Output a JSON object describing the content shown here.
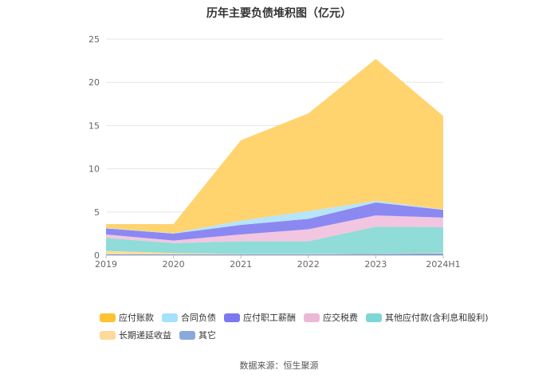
{
  "title": "历年主要负债堆积图（亿元）",
  "source": "数据来源：恒生聚源",
  "chart_data": {
    "type": "area",
    "stacked": true,
    "title": "历年主要负债堆积图（亿元）",
    "categories": [
      "2019",
      "2020",
      "2021",
      "2022",
      "2023",
      "2024H1"
    ],
    "ylim": [
      0,
      25
    ],
    "yticks": [
      0,
      5,
      10,
      15,
      20,
      25
    ],
    "grid": true,
    "legend_position": "bottom",
    "series": [
      {
        "name": "其它",
        "color": "#7f9fd8",
        "values": [
          0.1,
          0.1,
          0.1,
          0.1,
          0.15,
          0.2
        ]
      },
      {
        "name": "长期递延收益",
        "color": "#ffdca0",
        "values": [
          0.4,
          0.15,
          0.05,
          0.05,
          0.05,
          0.05
        ]
      },
      {
        "name": "其他应付款(含利息和股利)",
        "color": "#8fdcd8",
        "values": [
          1.5,
          1.15,
          1.45,
          1.45,
          3.1,
          3.0
        ]
      },
      {
        "name": "应交税费",
        "color": "#f2c6e0",
        "values": [
          0.4,
          0.3,
          0.8,
          1.4,
          1.3,
          1.1
        ]
      },
      {
        "name": "应付职工薪酬",
        "color": "#8c88f2",
        "values": [
          0.7,
          0.8,
          1.1,
          1.2,
          1.5,
          0.9
        ]
      },
      {
        "name": "合同负债",
        "color": "#b6e4f8",
        "values": [
          0.05,
          0.05,
          0.5,
          0.9,
          0.2,
          0.05
        ]
      },
      {
        "name": "应付账款",
        "color": "#ffd36e",
        "values": [
          0.45,
          1.05,
          9.3,
          11.3,
          16.4,
          10.8
        ]
      }
    ]
  },
  "legend": [
    {
      "name": "应付账款",
      "color": "#ffc233"
    },
    {
      "name": "合同负债",
      "color": "#a6e0fc"
    },
    {
      "name": "应付职工薪酬",
      "color": "#7b78f0"
    },
    {
      "name": "应交税费",
      "color": "#ecb8d8"
    },
    {
      "name": "其他应付款(含利息和股利)",
      "color": "#7ed6d6"
    },
    {
      "name": "长期递延收益",
      "color": "#ffd89a"
    },
    {
      "name": "其它",
      "color": "#8aa8dc"
    }
  ]
}
